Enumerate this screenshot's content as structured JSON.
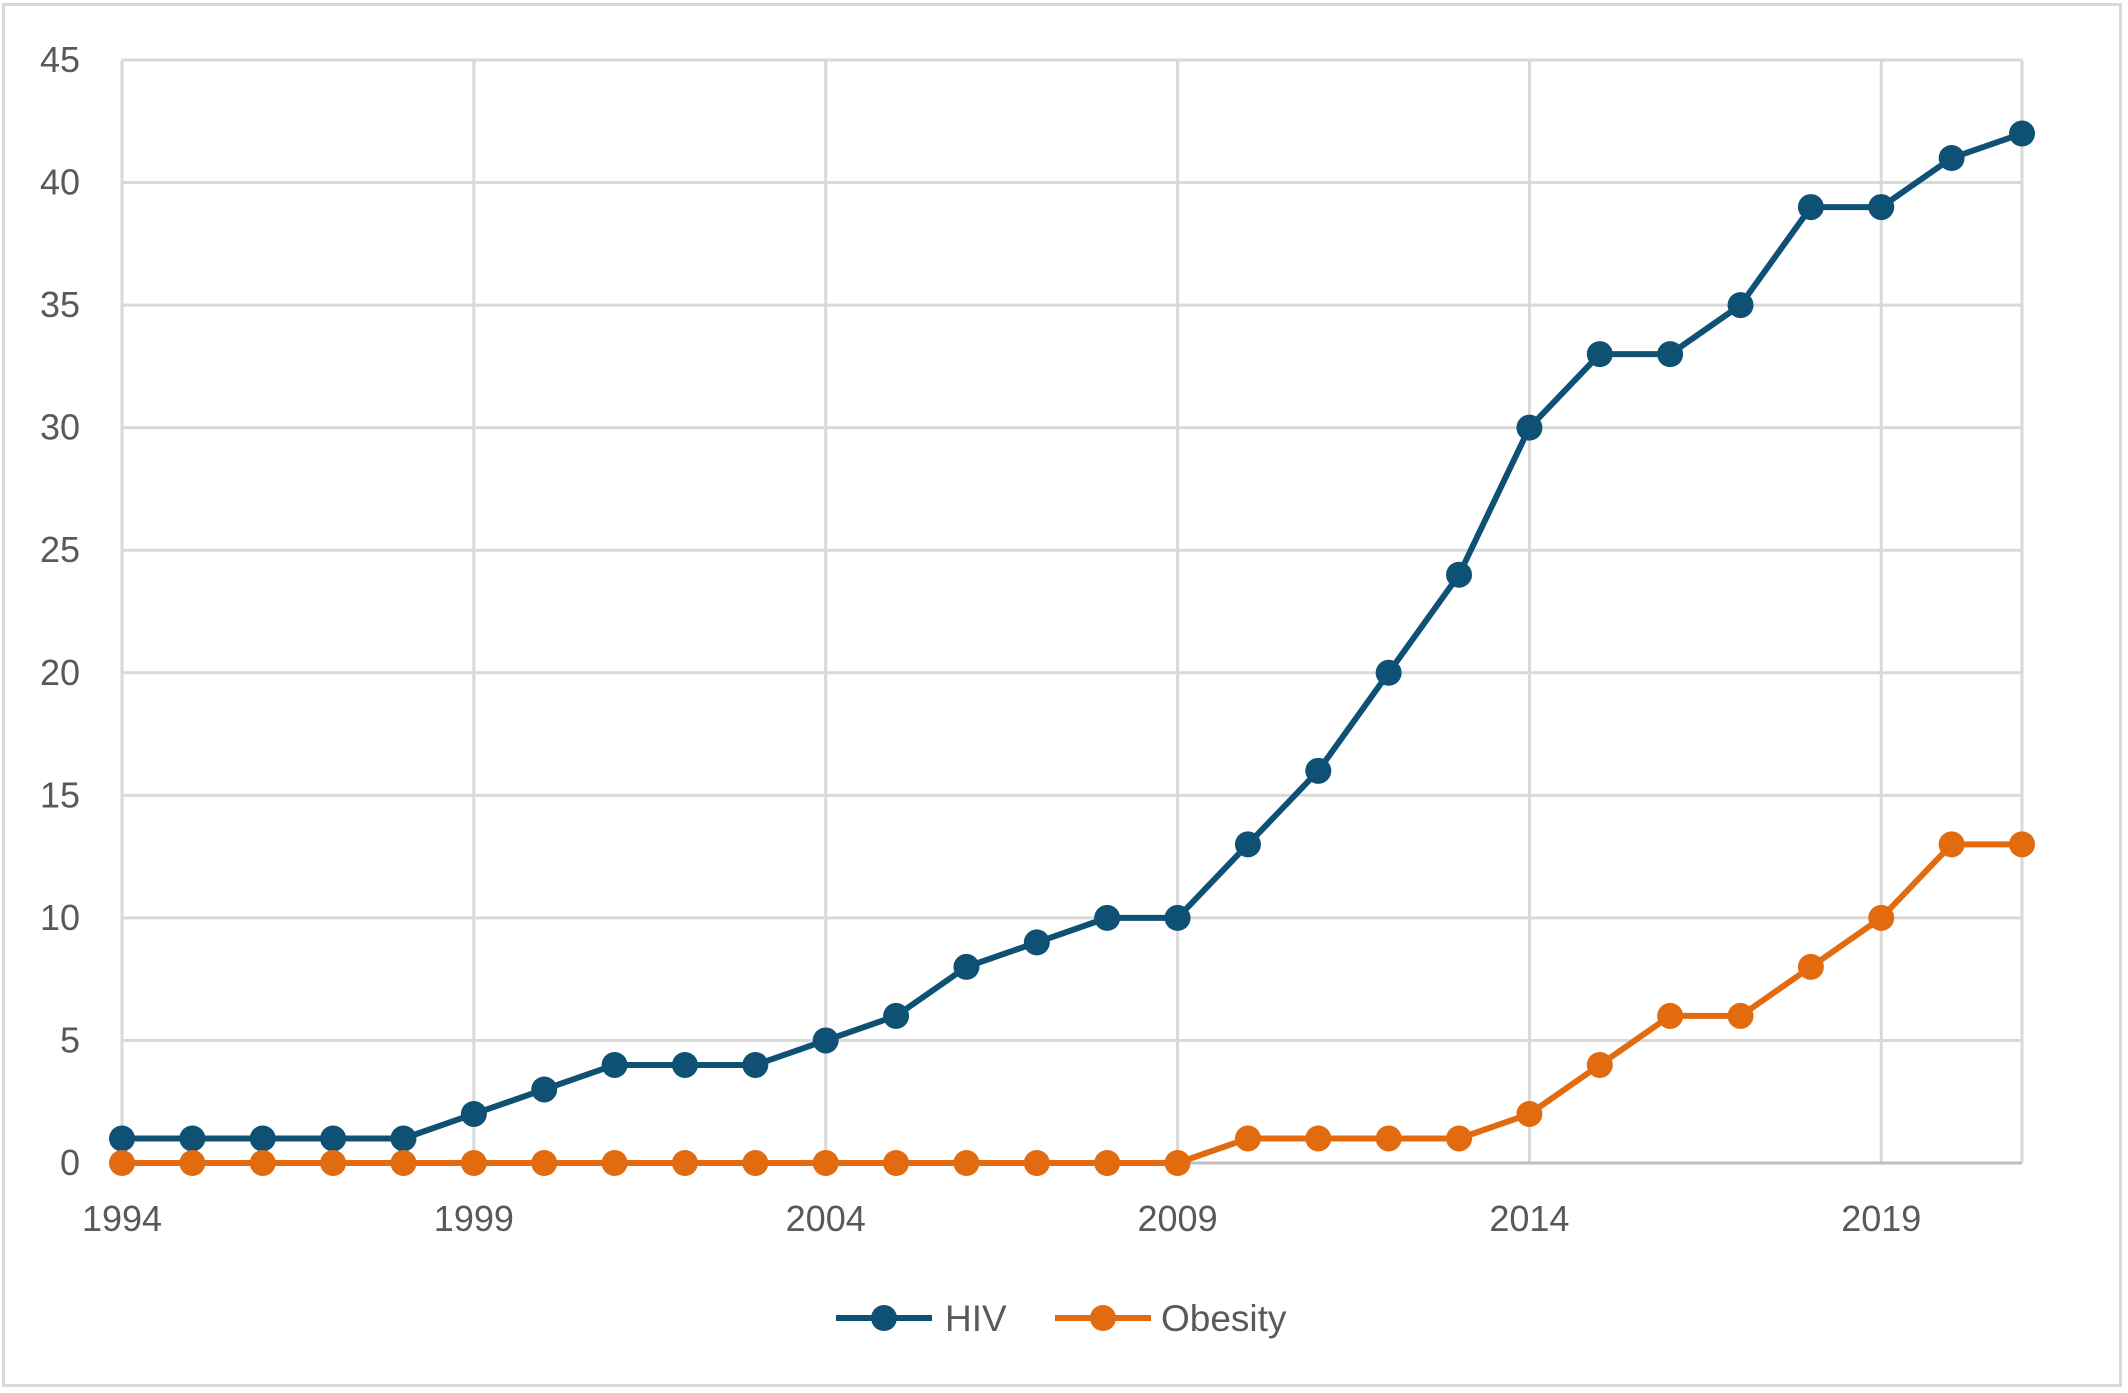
{
  "chart_data": {
    "type": "line",
    "title": "",
    "xlabel": "",
    "ylabel": "",
    "x": [
      1994,
      1995,
      1996,
      1997,
      1998,
      1999,
      2000,
      2001,
      2002,
      2003,
      2004,
      2005,
      2006,
      2007,
      2008,
      2009,
      2010,
      2011,
      2012,
      2013,
      2014,
      2015,
      2016,
      2017,
      2018,
      2019,
      2020,
      2021
    ],
    "x_tick_labels": [
      "1994",
      "1999",
      "2004",
      "2009",
      "2014",
      "2019"
    ],
    "y_tick_labels": [
      "0",
      "5",
      "10",
      "15",
      "20",
      "25",
      "30",
      "35",
      "40",
      "45"
    ],
    "xlim": [
      1994,
      2021
    ],
    "ylim": [
      0,
      45
    ],
    "grid": true,
    "legend_position": "bottom",
    "series": [
      {
        "name": "HIV",
        "color": "#0e5174",
        "values": [
          1,
          1,
          1,
          1,
          1,
          2,
          3,
          4,
          4,
          4,
          5,
          6,
          8,
          9,
          10,
          10,
          13,
          16,
          20,
          24,
          30,
          33,
          33,
          35,
          39,
          39,
          41,
          42
        ]
      },
      {
        "name": "Obesity",
        "color": "#e26b10",
        "values": [
          0,
          0,
          0,
          0,
          0,
          0,
          0,
          0,
          0,
          0,
          0,
          0,
          0,
          0,
          0,
          0,
          1,
          1,
          1,
          1,
          2,
          4,
          6,
          6,
          8,
          10,
          13,
          13
        ]
      }
    ]
  }
}
